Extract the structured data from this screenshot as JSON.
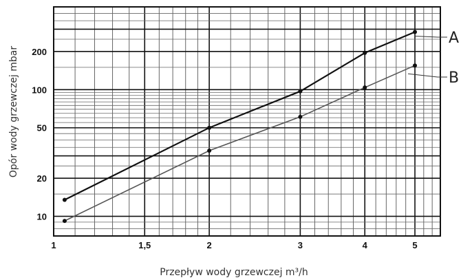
{
  "chart_data": {
    "type": "line",
    "xlabel": "Przepływ wody grzewczej m³/h",
    "ylabel": "Opór wody grzewczej mbar",
    "x_scale": "log",
    "y_scale": "log",
    "xlim": [
      1,
      5.6
    ],
    "ylim": [
      7,
      450
    ],
    "x_ticks": [
      {
        "value": 1,
        "label": "1"
      },
      {
        "value": 1.5,
        "label": "1,5"
      },
      {
        "value": 2,
        "label": "2"
      },
      {
        "value": 3,
        "label": "3"
      },
      {
        "value": 4,
        "label": "4"
      },
      {
        "value": 5,
        "label": "5"
      }
    ],
    "y_ticks": [
      {
        "value": 10,
        "label": "10"
      },
      {
        "value": 20,
        "label": "20"
      },
      {
        "value": 50,
        "label": "50"
      },
      {
        "value": 100,
        "label": "100"
      },
      {
        "value": 200,
        "label": "200"
      }
    ],
    "grid": true,
    "series": [
      {
        "name": "A",
        "color": "#111111",
        "x": [
          1.05,
          2,
          3,
          4,
          5
        ],
        "y": [
          13.5,
          50,
          97,
          195,
          285
        ]
      },
      {
        "name": "B",
        "color": "#555555",
        "x": [
          1.05,
          2,
          3,
          4,
          5
        ],
        "y": [
          9.2,
          33,
          61,
          104,
          155
        ]
      }
    ]
  }
}
